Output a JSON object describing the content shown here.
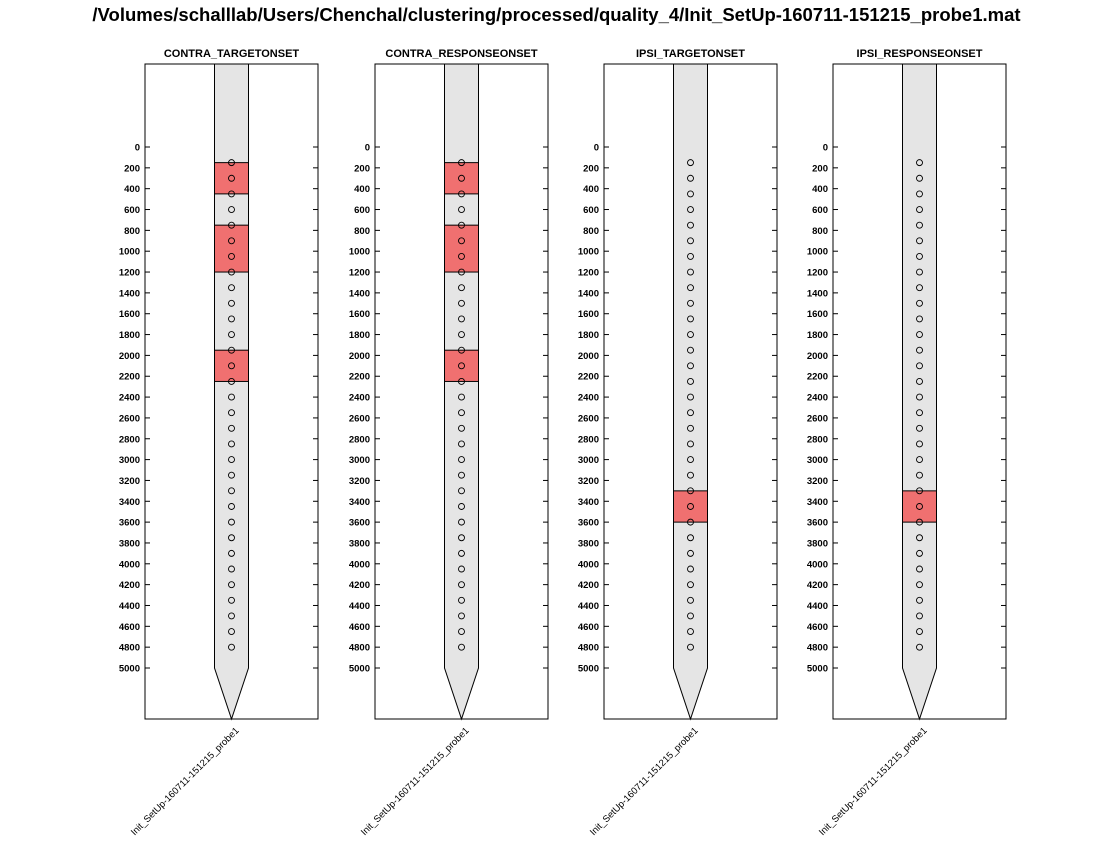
{
  "figure": {
    "title": "/Volumes/schalllab/Users/Chenchal/clustering/processed/quality_4/Init_SetUp-160711-151215_probe1.mat"
  },
  "colors": {
    "probe_fill": "#e5e5e5",
    "highlight_fill": "#f07070",
    "outline": "#000000",
    "background": "#ffffff"
  },
  "chart_data": [
    {
      "type": "probe-depth",
      "title": "CONTRA_TARGETONSET",
      "xtick_label": "Init_SetUp-160711-151215_probe1",
      "y_ticks": [
        0,
        200,
        400,
        600,
        800,
        1000,
        1200,
        1400,
        1600,
        1800,
        2000,
        2200,
        2400,
        2600,
        2800,
        3000,
        3200,
        3400,
        3600,
        3800,
        4000,
        4200,
        4400,
        4600,
        4800,
        5000
      ],
      "y_reversed": true,
      "channel_depths": [
        150,
        300,
        450,
        600,
        750,
        900,
        1050,
        1200,
        1350,
        1500,
        1650,
        1800,
        1950,
        2100,
        2250,
        2400,
        2550,
        2700,
        2850,
        3000,
        3150,
        3300,
        3450,
        3600,
        3750,
        3900,
        4050,
        4200,
        4350,
        4500,
        4650,
        4800
      ],
      "highlight_ranges": [
        [
          150,
          450
        ],
        [
          750,
          1200
        ],
        [
          1950,
          2250
        ]
      ]
    },
    {
      "type": "probe-depth",
      "title": "CONTRA_RESPONSEONSET",
      "xtick_label": "Init_SetUp-160711-151215_probe1",
      "y_ticks": [
        0,
        200,
        400,
        600,
        800,
        1000,
        1200,
        1400,
        1600,
        1800,
        2000,
        2200,
        2400,
        2600,
        2800,
        3000,
        3200,
        3400,
        3600,
        3800,
        4000,
        4200,
        4400,
        4600,
        4800,
        5000
      ],
      "y_reversed": true,
      "channel_depths": [
        150,
        300,
        450,
        600,
        750,
        900,
        1050,
        1200,
        1350,
        1500,
        1650,
        1800,
        1950,
        2100,
        2250,
        2400,
        2550,
        2700,
        2850,
        3000,
        3150,
        3300,
        3450,
        3600,
        3750,
        3900,
        4050,
        4200,
        4350,
        4500,
        4650,
        4800
      ],
      "highlight_ranges": [
        [
          150,
          450
        ],
        [
          750,
          1200
        ],
        [
          1950,
          2250
        ]
      ]
    },
    {
      "type": "probe-depth",
      "title": "IPSI_TARGETONSET",
      "xtick_label": "Init_SetUp-160711-151215_probe1",
      "y_ticks": [
        0,
        200,
        400,
        600,
        800,
        1000,
        1200,
        1400,
        1600,
        1800,
        2000,
        2200,
        2400,
        2600,
        2800,
        3000,
        3200,
        3400,
        3600,
        3800,
        4000,
        4200,
        4400,
        4600,
        4800,
        5000
      ],
      "y_reversed": true,
      "channel_depths": [
        150,
        300,
        450,
        600,
        750,
        900,
        1050,
        1200,
        1350,
        1500,
        1650,
        1800,
        1950,
        2100,
        2250,
        2400,
        2550,
        2700,
        2850,
        3000,
        3150,
        3300,
        3450,
        3600,
        3750,
        3900,
        4050,
        4200,
        4350,
        4500,
        4650,
        4800
      ],
      "highlight_ranges": [
        [
          3300,
          3600
        ]
      ]
    },
    {
      "type": "probe-depth",
      "title": "IPSI_RESPONSEONSET",
      "xtick_label": "Init_SetUp-160711-151215_probe1",
      "y_ticks": [
        0,
        200,
        400,
        600,
        800,
        1000,
        1200,
        1400,
        1600,
        1800,
        2000,
        2200,
        2400,
        2600,
        2800,
        3000,
        3200,
        3400,
        3600,
        3800,
        4000,
        4200,
        4400,
        4600,
        4800,
        5000
      ],
      "y_reversed": true,
      "channel_depths": [
        150,
        300,
        450,
        600,
        750,
        900,
        1050,
        1200,
        1350,
        1500,
        1650,
        1800,
        1950,
        2100,
        2250,
        2400,
        2550,
        2700,
        2850,
        3000,
        3150,
        3300,
        3450,
        3600,
        3750,
        3900,
        4050,
        4200,
        4350,
        4500,
        4650,
        4800
      ],
      "highlight_ranges": [
        [
          3300,
          3600
        ]
      ]
    }
  ]
}
